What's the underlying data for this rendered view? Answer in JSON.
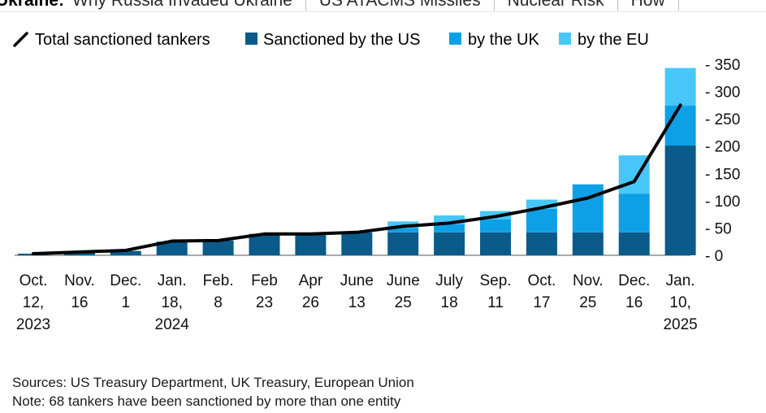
{
  "nav": {
    "section": "Ukraine:",
    "links": [
      "Why Russia Invaded Ukraine",
      "US ATACMS Missiles",
      "Nuclear Risk",
      "How"
    ]
  },
  "legend": {
    "total": "Total sanctioned tankers",
    "us": "Sanctioned by the US",
    "uk": "by the UK",
    "eu": "by the EU"
  },
  "colors": {
    "us": "#0a5a8a",
    "uk": "#0ea0e6",
    "eu": "#47c6fa",
    "total": "#000000"
  },
  "chart_data": {
    "type": "bar",
    "stacked": true,
    "categories": [
      [
        "Oct.",
        "12,",
        "2023"
      ],
      [
        "Nov.",
        "16"
      ],
      [
        "Dec.",
        "1"
      ],
      [
        "Jan.",
        "18,",
        "2024"
      ],
      [
        "Feb.",
        "8"
      ],
      [
        "Feb",
        "23"
      ],
      [
        "Apr",
        "26"
      ],
      [
        "June",
        "13"
      ],
      [
        "June",
        "25"
      ],
      [
        "July",
        "18"
      ],
      [
        "Sep.",
        "11"
      ],
      [
        "Oct.",
        "17"
      ],
      [
        "Nov.",
        "25"
      ],
      [
        "Dec.",
        "16"
      ],
      [
        "Jan.",
        "10,",
        "2025"
      ]
    ],
    "series": [
      {
        "name": "Sanctioned by the US",
        "key": "us",
        "values": [
          3,
          6,
          8,
          25,
          27,
          39,
          39,
          42,
          42,
          42,
          42,
          42,
          42,
          42,
          201
        ]
      },
      {
        "name": "by the UK",
        "key": "uk",
        "values": [
          0,
          0,
          0,
          0,
          0,
          0,
          0,
          0,
          8,
          15,
          24,
          43,
          88,
          71,
          73
        ]
      },
      {
        "name": "by the EU",
        "key": "eu",
        "values": [
          0,
          0,
          0,
          0,
          0,
          0,
          0,
          0,
          12,
          16,
          15,
          17,
          0,
          70,
          69
        ]
      }
    ],
    "line": {
      "name": "Total sanctioned tankers",
      "values": [
        3,
        6,
        9,
        26,
        27,
        39,
        39,
        42,
        53,
        59,
        71,
        87,
        105,
        135,
        275
      ]
    },
    "y_axis": {
      "position": "right",
      "ticks": [
        0,
        50,
        100,
        150,
        200,
        250,
        300,
        350
      ],
      "tick_labels": [
        "- 0",
        "- 50",
        "- 100",
        "- 150",
        "- 200",
        "- 250",
        "- 300",
        "- 350"
      ],
      "ylim": [
        0,
        350
      ]
    },
    "title": "",
    "xlabel": "",
    "ylabel": "",
    "grid": false,
    "legend_placement": "top-left"
  },
  "footnotes": {
    "sources": "Sources: US Treasury Department, UK Treasury, European Union",
    "note": "Note: 68 tankers have been sanctioned by more than one entity"
  }
}
